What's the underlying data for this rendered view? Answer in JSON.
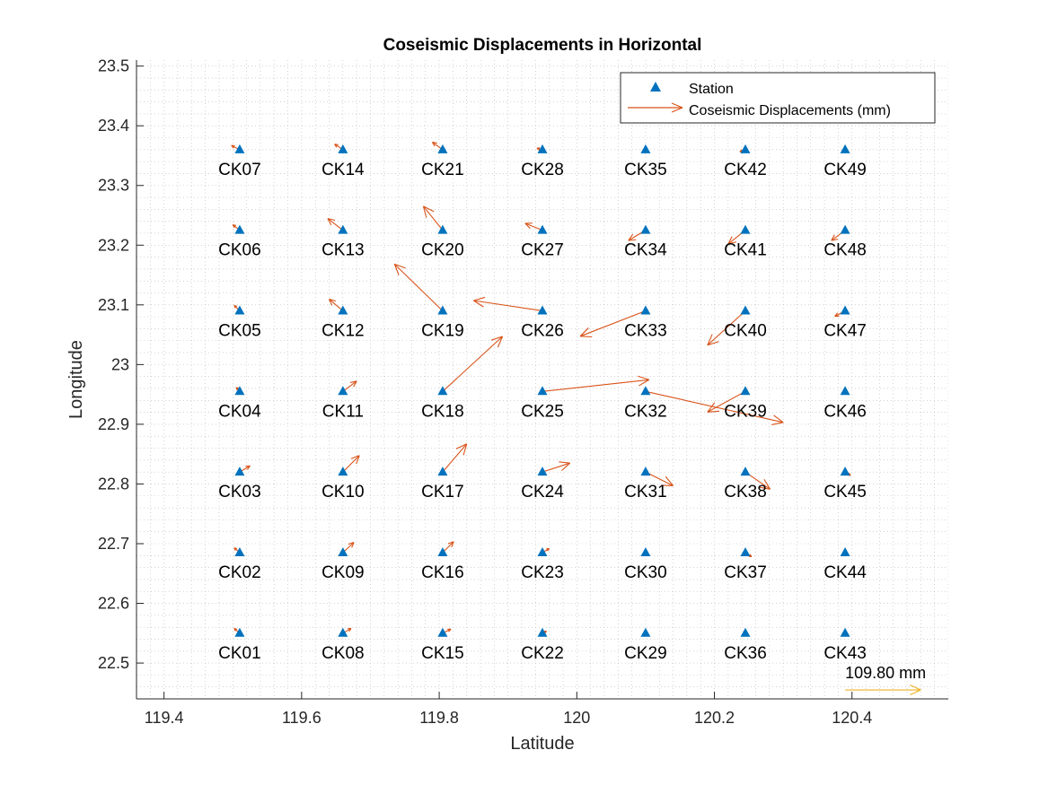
{
  "chart_data": {
    "type": "scatter",
    "title": "Coseismic Displacements in Horizontal",
    "xlabel": "Latitude",
    "ylabel": "Longitude",
    "xlim": [
      119.36,
      120.54
    ],
    "ylim": [
      22.44,
      23.51
    ],
    "grid": "minor-dotted",
    "legend_position": "top-right",
    "xticks": [
      "119.4",
      "119.6",
      "119.8",
      "120",
      "120.2",
      "120.4"
    ],
    "yticks": [
      "22.5",
      "22.6",
      "22.7",
      "22.8",
      "22.9",
      "23",
      "23.1",
      "23.2",
      "23.3",
      "23.4",
      "23.5"
    ],
    "legend": [
      {
        "label": "Station",
        "marker": "triangle"
      },
      {
        "label": "Coseismic Displacements (mm)",
        "marker": "arrow"
      }
    ],
    "colors": {
      "station": "#0072BD",
      "displacement": "#D95319",
      "scale_arrow": "#EDB120",
      "grid": "#b8b8b8",
      "axis": "#262626"
    },
    "series": [
      {
        "name": "Station",
        "points": [
          {
            "id": "CK01",
            "lat": 119.51,
            "lon": 22.55,
            "de": -0.008,
            "dn": 0.007
          },
          {
            "id": "CK02",
            "lat": 119.51,
            "lon": 22.685,
            "de": -0.008,
            "dn": 0.007
          },
          {
            "id": "CK03",
            "lat": 119.51,
            "lon": 22.82,
            "de": 0.015,
            "dn": 0.009
          },
          {
            "id": "CK04",
            "lat": 119.51,
            "lon": 22.955,
            "de": -0.005,
            "dn": 0.006
          },
          {
            "id": "CK05",
            "lat": 119.51,
            "lon": 23.09,
            "de": -0.008,
            "dn": 0.008
          },
          {
            "id": "CK06",
            "lat": 119.51,
            "lon": 23.225,
            "de": -0.01,
            "dn": 0.008
          },
          {
            "id": "CK07",
            "lat": 119.51,
            "lon": 23.36,
            "de": -0.012,
            "dn": 0.006
          },
          {
            "id": "CK08",
            "lat": 119.66,
            "lon": 22.55,
            "de": 0.012,
            "dn": 0.007
          },
          {
            "id": "CK09",
            "lat": 119.66,
            "lon": 22.685,
            "de": 0.016,
            "dn": 0.015
          },
          {
            "id": "CK10",
            "lat": 119.66,
            "lon": 22.82,
            "de": 0.024,
            "dn": 0.024
          },
          {
            "id": "CK11",
            "lat": 119.66,
            "lon": 22.955,
            "de": 0.02,
            "dn": 0.015
          },
          {
            "id": "CK12",
            "lat": 119.66,
            "lon": 23.09,
            "de": -0.02,
            "dn": 0.017
          },
          {
            "id": "CK13",
            "lat": 119.66,
            "lon": 23.225,
            "de": -0.022,
            "dn": 0.017
          },
          {
            "id": "CK14",
            "lat": 119.66,
            "lon": 23.36,
            "de": -0.012,
            "dn": 0.008
          },
          {
            "id": "CK15",
            "lat": 119.805,
            "lon": 22.55,
            "de": 0.012,
            "dn": 0.006
          },
          {
            "id": "CK16",
            "lat": 119.805,
            "lon": 22.685,
            "de": 0.016,
            "dn": 0.016
          },
          {
            "id": "CK17",
            "lat": 119.805,
            "lon": 22.82,
            "de": 0.035,
            "dn": 0.041
          },
          {
            "id": "CK18",
            "lat": 119.805,
            "lon": 22.955,
            "de": 0.087,
            "dn": 0.08
          },
          {
            "id": "CK19",
            "lat": 119.805,
            "lon": 23.09,
            "de": -0.07,
            "dn": 0.068
          },
          {
            "id": "CK20",
            "lat": 119.805,
            "lon": 23.225,
            "de": -0.028,
            "dn": 0.035
          },
          {
            "id": "CK21",
            "lat": 119.805,
            "lon": 23.36,
            "de": -0.015,
            "dn": 0.011
          },
          {
            "id": "CK22",
            "lat": 119.95,
            "lon": 22.55,
            "de": 0.006,
            "dn": 0.003
          },
          {
            "id": "CK23",
            "lat": 119.95,
            "lon": 22.685,
            "de": 0.01,
            "dn": 0.006
          },
          {
            "id": "CK24",
            "lat": 119.95,
            "lon": 22.82,
            "de": 0.04,
            "dn": 0.013
          },
          {
            "id": "CK25",
            "lat": 119.95,
            "lon": 22.955,
            "de": 0.155,
            "dn": 0.017
          },
          {
            "id": "CK26",
            "lat": 119.95,
            "lon": 23.09,
            "de": -0.1,
            "dn": 0.015
          },
          {
            "id": "CK27",
            "lat": 119.95,
            "lon": 23.225,
            "de": -0.025,
            "dn": 0.01
          },
          {
            "id": "CK28",
            "lat": 119.95,
            "lon": 23.36,
            "de": -0.008,
            "dn": 0.002
          },
          {
            "id": "CK29",
            "lat": 120.1,
            "lon": 22.55,
            "de": 0.002,
            "dn": 0.0
          },
          {
            "id": "CK30",
            "lat": 120.1,
            "lon": 22.685,
            "de": 0.003,
            "dn": 0.0
          },
          {
            "id": "CK31",
            "lat": 120.1,
            "lon": 22.82,
            "de": 0.04,
            "dn": -0.02
          },
          {
            "id": "CK32",
            "lat": 120.1,
            "lon": 22.955,
            "de": 0.2,
            "dn": -0.045
          },
          {
            "id": "CK33",
            "lat": 120.1,
            "lon": 23.09,
            "de": -0.095,
            "dn": -0.037
          },
          {
            "id": "CK34",
            "lat": 120.1,
            "lon": 23.225,
            "de": -0.025,
            "dn": -0.015
          },
          {
            "id": "CK35",
            "lat": 120.1,
            "lon": 23.36,
            "de": -0.005,
            "dn": -0.002
          },
          {
            "id": "CK36",
            "lat": 120.245,
            "lon": 22.55,
            "de": 0.003,
            "dn": -0.004
          },
          {
            "id": "CK37",
            "lat": 120.245,
            "lon": 22.685,
            "de": 0.009,
            "dn": -0.006
          },
          {
            "id": "CK38",
            "lat": 120.245,
            "lon": 22.82,
            "de": 0.036,
            "dn": -0.025
          },
          {
            "id": "CK39",
            "lat": 120.245,
            "lon": 22.955,
            "de": -0.055,
            "dn": -0.03
          },
          {
            "id": "CK40",
            "lat": 120.245,
            "lon": 23.09,
            "de": -0.055,
            "dn": -0.05
          },
          {
            "id": "CK41",
            "lat": 120.245,
            "lon": 23.225,
            "de": -0.025,
            "dn": -0.02
          },
          {
            "id": "CK42",
            "lat": 120.245,
            "lon": 23.36,
            "de": -0.008,
            "dn": -0.003
          },
          {
            "id": "CK43",
            "lat": 120.39,
            "lon": 22.55,
            "de": -0.004,
            "dn": -0.003
          },
          {
            "id": "CK44",
            "lat": 120.39,
            "lon": 22.685,
            "de": 0.002,
            "dn": -0.002
          },
          {
            "id": "CK45",
            "lat": 120.39,
            "lon": 22.82,
            "de": 0.008,
            "dn": -0.005
          },
          {
            "id": "CK46",
            "lat": 120.39,
            "lon": 22.955,
            "de": 0.002,
            "dn": 0.0
          },
          {
            "id": "CK47",
            "lat": 120.39,
            "lon": 23.09,
            "de": -0.015,
            "dn": -0.008
          },
          {
            "id": "CK48",
            "lat": 120.39,
            "lon": 23.225,
            "de": -0.02,
            "dn": -0.015
          },
          {
            "id": "CK49",
            "lat": 120.39,
            "lon": 23.36,
            "de": -0.005,
            "dn": -0.002
          }
        ]
      }
    ],
    "scale_arrow": {
      "label": "109.80 mm",
      "lat": 120.39,
      "lon": 22.455,
      "de": 0.11,
      "dn": 0.0
    }
  }
}
